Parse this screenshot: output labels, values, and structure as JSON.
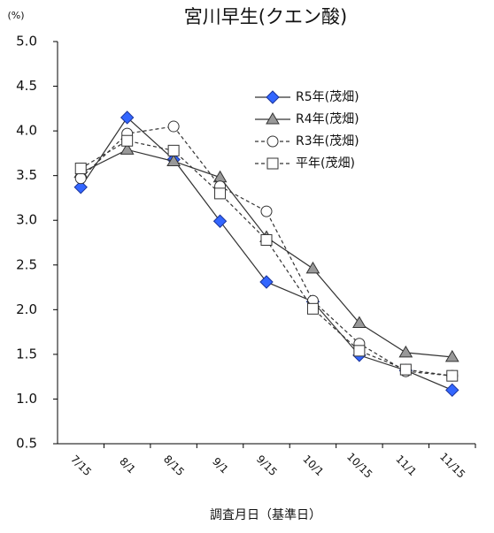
{
  "chart_data": {
    "type": "line",
    "title": "宮川早生(クエン酸)",
    "y_unit": "(%)",
    "x_label": "調査月日（基準日）",
    "categories": [
      "7/15",
      "8/1",
      "8/15",
      "9/1",
      "9/15",
      "10/1",
      "10/15",
      "11/1",
      "11/15"
    ],
    "series": [
      {
        "name": "R5年(茂畑)",
        "color": "#3366ff",
        "marker": "diamond",
        "dashed": false,
        "values": [
          3.37,
          4.15,
          3.68,
          2.99,
          2.31,
          2.09,
          1.49,
          1.32,
          1.1
        ]
      },
      {
        "name": "R4年(茂畑)",
        "color": "#999999",
        "marker": "triangle",
        "dashed": false,
        "values": [
          3.53,
          3.79,
          3.66,
          3.48,
          2.81,
          2.46,
          1.85,
          1.52,
          1.47
        ]
      },
      {
        "name": "R3年(茂畑)",
        "color": "#ffffff",
        "marker": "circle",
        "dashed": true,
        "values": [
          3.47,
          3.97,
          4.05,
          3.38,
          3.1,
          2.1,
          1.62,
          1.31,
          1.26
        ]
      },
      {
        "name": "平年(茂畑)",
        "color": "#ffffff",
        "marker": "square",
        "dashed": true,
        "values": [
          3.58,
          3.89,
          3.78,
          3.3,
          2.78,
          2.01,
          1.54,
          1.33,
          1.26
        ]
      }
    ],
    "ylim": [
      0.5,
      5.0
    ],
    "yticks": [
      {
        "value": 0.5,
        "label": "0.5"
      },
      {
        "value": 1.0,
        "label": "1.0"
      },
      {
        "value": 1.5,
        "label": "1.5"
      },
      {
        "value": 2.0,
        "label": "2.0"
      },
      {
        "value": 2.5,
        "label": "2.5"
      },
      {
        "value": 3.0,
        "label": "3.0"
      },
      {
        "value": 3.5,
        "label": "3.5"
      },
      {
        "value": 4.0,
        "label": "4.0"
      },
      {
        "value": 4.5,
        "label": "4.5"
      },
      {
        "value": 5.0,
        "label": "5.0"
      }
    ],
    "grid": false
  }
}
